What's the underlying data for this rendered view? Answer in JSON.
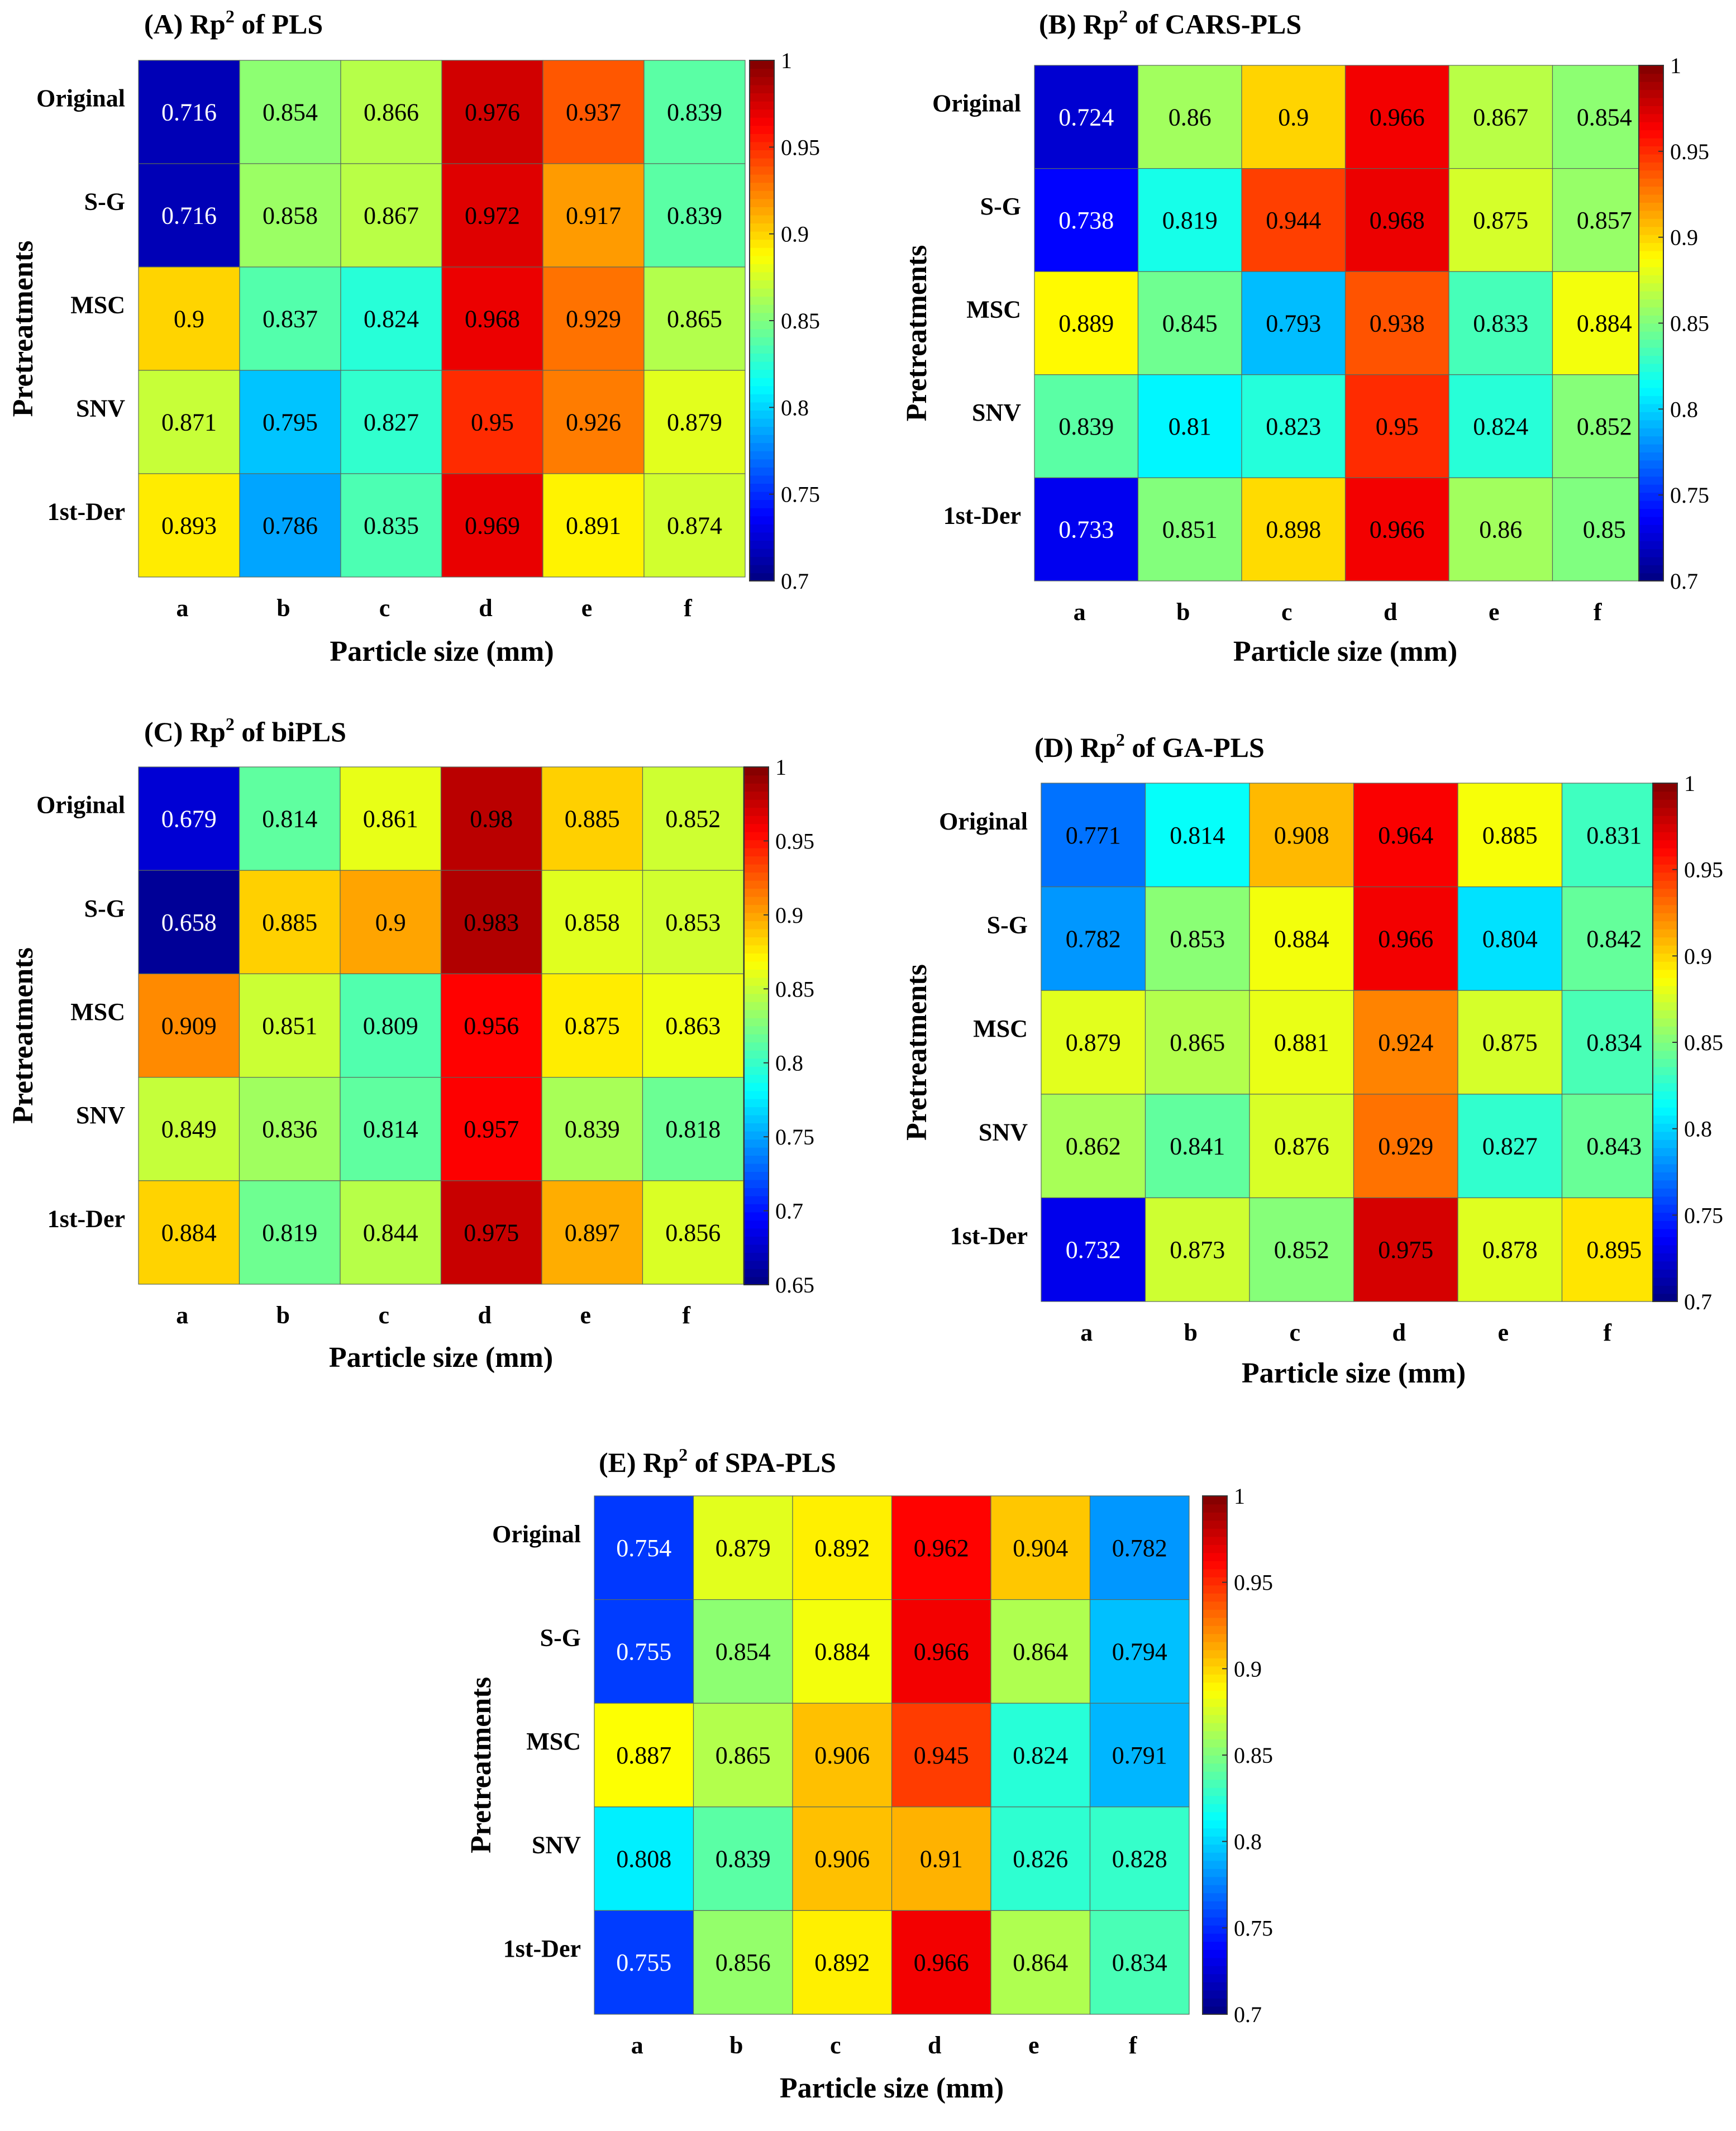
{
  "panels": [
    {
      "type": "heatmap",
      "title": "(A) Rp² of PLS",
      "title_main": "(A) Rp",
      "title_sup": "2",
      "title_rest": " of PLS",
      "xlabel": "Particle size (mm)",
      "ylabel": "Pretreatments",
      "x_categories": [
        "a",
        "b",
        "c",
        "d",
        "e",
        "f"
      ],
      "y_categories": [
        "Original",
        "S-G",
        "MSC",
        "SNV",
        "1st-Der"
      ],
      "values": [
        [
          0.716,
          0.854,
          0.866,
          0.976,
          0.937,
          0.839
        ],
        [
          0.716,
          0.858,
          0.867,
          0.972,
          0.917,
          0.839
        ],
        [
          0.9,
          0.837,
          0.824,
          0.968,
          0.929,
          0.865
        ],
        [
          0.871,
          0.795,
          0.827,
          0.95,
          0.926,
          0.879
        ],
        [
          0.893,
          0.786,
          0.835,
          0.969,
          0.891,
          0.874
        ]
      ],
      "cmin": 0.7,
      "cmax": 1,
      "colorbar_ticks": [
        "0.7",
        "0.75",
        "0.8",
        "0.85",
        "0.9",
        "0.95",
        "1"
      ]
    },
    {
      "type": "heatmap",
      "title": "(B) Rp² of CARS-PLS",
      "title_main": "(B) Rp",
      "title_sup": "2",
      "title_rest": " of CARS-PLS",
      "xlabel": "Particle size (mm)",
      "ylabel": "Pretreatments",
      "x_categories": [
        "a",
        "b",
        "c",
        "d",
        "e",
        "f"
      ],
      "y_categories": [
        "Original",
        "S-G",
        "MSC",
        "SNV",
        "1st-Der"
      ],
      "values": [
        [
          0.724,
          0.86,
          0.9,
          0.966,
          0.867,
          0.854
        ],
        [
          0.738,
          0.819,
          0.944,
          0.968,
          0.875,
          0.857
        ],
        [
          0.889,
          0.845,
          0.793,
          0.938,
          0.833,
          0.884
        ],
        [
          0.839,
          0.81,
          0.823,
          0.95,
          0.824,
          0.852
        ],
        [
          0.733,
          0.851,
          0.898,
          0.966,
          0.86,
          0.85
        ]
      ],
      "cmin": 0.7,
      "cmax": 1,
      "colorbar_ticks": [
        "0.7",
        "0.75",
        "0.8",
        "0.85",
        "0.9",
        "0.95",
        "1"
      ]
    },
    {
      "type": "heatmap",
      "title": "(C) Rp² of biPLS",
      "title_main": "(C) Rp",
      "title_sup": "2",
      "title_rest": " of biPLS",
      "xlabel": "Particle size (mm)",
      "ylabel": "Pretreatments",
      "x_categories": [
        "a",
        "b",
        "c",
        "d",
        "e",
        "f"
      ],
      "y_categories": [
        "Original",
        "S-G",
        "MSC",
        "SNV",
        "1st-Der"
      ],
      "values": [
        [
          0.679,
          0.814,
          0.861,
          0.98,
          0.885,
          0.852
        ],
        [
          0.658,
          0.885,
          0.9,
          0.983,
          0.858,
          0.853
        ],
        [
          0.909,
          0.851,
          0.809,
          0.956,
          0.875,
          0.863
        ],
        [
          0.849,
          0.836,
          0.814,
          0.957,
          0.839,
          0.818
        ],
        [
          0.884,
          0.819,
          0.844,
          0.975,
          0.897,
          0.856
        ]
      ],
      "cmin": 0.65,
      "cmax": 1,
      "colorbar_ticks": [
        "0.65",
        "0.7",
        "0.75",
        "0.8",
        "0.85",
        "0.9",
        "0.95",
        "1"
      ]
    },
    {
      "type": "heatmap",
      "title": "(D) Rp² of GA-PLS",
      "title_main": "(D) Rp",
      "title_sup": "2",
      "title_rest": " of GA-PLS",
      "xlabel": "Particle size (mm)",
      "ylabel": "Pretreatments",
      "x_categories": [
        "a",
        "b",
        "c",
        "d",
        "e",
        "f"
      ],
      "y_categories": [
        "Original",
        "S-G",
        "MSC",
        "SNV",
        "1st-Der"
      ],
      "values": [
        [
          0.771,
          0.814,
          0.908,
          0.964,
          0.885,
          0.831
        ],
        [
          0.782,
          0.853,
          0.884,
          0.966,
          0.804,
          0.842
        ],
        [
          0.879,
          0.865,
          0.881,
          0.924,
          0.875,
          0.834
        ],
        [
          0.862,
          0.841,
          0.876,
          0.929,
          0.827,
          0.843
        ],
        [
          0.732,
          0.873,
          0.852,
          0.975,
          0.878,
          0.895
        ]
      ],
      "cmin": 0.7,
      "cmax": 1,
      "colorbar_ticks": [
        "0.7",
        "0.75",
        "0.8",
        "0.85",
        "0.9",
        "0.95",
        "1"
      ]
    },
    {
      "type": "heatmap",
      "title": "(E) Rp² of SPA-PLS",
      "title_main": "(E) Rp",
      "title_sup": "2",
      "title_rest": " of SPA-PLS",
      "xlabel": "Particle size (mm)",
      "ylabel": "Pretreatments",
      "x_categories": [
        "a",
        "b",
        "c",
        "d",
        "e",
        "f"
      ],
      "y_categories": [
        "Original",
        "S-G",
        "MSC",
        "SNV",
        "1st-Der"
      ],
      "values": [
        [
          0.754,
          0.879,
          0.892,
          0.962,
          0.904,
          0.782
        ],
        [
          0.755,
          0.854,
          0.884,
          0.966,
          0.864,
          0.794
        ],
        [
          0.887,
          0.865,
          0.906,
          0.945,
          0.824,
          0.791
        ],
        [
          0.808,
          0.839,
          0.906,
          0.91,
          0.826,
          0.828
        ],
        [
          0.755,
          0.856,
          0.892,
          0.966,
          0.864,
          0.834
        ]
      ],
      "cmin": 0.7,
      "cmax": 1,
      "colorbar_ticks": [
        "0.7",
        "0.75",
        "0.8",
        "0.85",
        "0.9",
        "0.95",
        "1"
      ]
    }
  ],
  "chart_data": [
    {
      "type": "heatmap",
      "title": "(A) Rp² of PLS",
      "xlabel": "Particle size (mm)",
      "ylabel": "Pretreatments",
      "x": [
        "a",
        "b",
        "c",
        "d",
        "e",
        "f"
      ],
      "y": [
        "Original",
        "S-G",
        "MSC",
        "SNV",
        "1st-Der"
      ],
      "z": [
        [
          0.716,
          0.854,
          0.866,
          0.976,
          0.937,
          0.839
        ],
        [
          0.716,
          0.858,
          0.867,
          0.972,
          0.917,
          0.839
        ],
        [
          0.9,
          0.837,
          0.824,
          0.968,
          0.929,
          0.865
        ],
        [
          0.871,
          0.795,
          0.827,
          0.95,
          0.926,
          0.879
        ],
        [
          0.893,
          0.786,
          0.835,
          0.969,
          0.891,
          0.874
        ]
      ],
      "colorbar_range": [
        0.7,
        1
      ]
    },
    {
      "type": "heatmap",
      "title": "(B) Rp² of CARS-PLS",
      "xlabel": "Particle size (mm)",
      "ylabel": "Pretreatments",
      "x": [
        "a",
        "b",
        "c",
        "d",
        "e",
        "f"
      ],
      "y": [
        "Original",
        "S-G",
        "MSC",
        "SNV",
        "1st-Der"
      ],
      "z": [
        [
          0.724,
          0.86,
          0.9,
          0.966,
          0.867,
          0.854
        ],
        [
          0.738,
          0.819,
          0.944,
          0.968,
          0.875,
          0.857
        ],
        [
          0.889,
          0.845,
          0.793,
          0.938,
          0.833,
          0.884
        ],
        [
          0.839,
          0.81,
          0.823,
          0.95,
          0.824,
          0.852
        ],
        [
          0.733,
          0.851,
          0.898,
          0.966,
          0.86,
          0.85
        ]
      ],
      "colorbar_range": [
        0.7,
        1
      ]
    },
    {
      "type": "heatmap",
      "title": "(C) Rp² of biPLS",
      "xlabel": "Particle size (mm)",
      "ylabel": "Pretreatments",
      "x": [
        "a",
        "b",
        "c",
        "d",
        "e",
        "f"
      ],
      "y": [
        "Original",
        "S-G",
        "MSC",
        "SNV",
        "1st-Der"
      ],
      "z": [
        [
          0.679,
          0.814,
          0.861,
          0.98,
          0.885,
          0.852
        ],
        [
          0.658,
          0.885,
          0.9,
          0.983,
          0.858,
          0.853
        ],
        [
          0.909,
          0.851,
          0.809,
          0.956,
          0.875,
          0.863
        ],
        [
          0.849,
          0.836,
          0.814,
          0.957,
          0.839,
          0.818
        ],
        [
          0.884,
          0.819,
          0.844,
          0.975,
          0.897,
          0.856
        ]
      ],
      "colorbar_range": [
        0.65,
        1
      ]
    },
    {
      "type": "heatmap",
      "title": "(D) Rp² of GA-PLS",
      "xlabel": "Particle size (mm)",
      "ylabel": "Pretreatments",
      "x": [
        "a",
        "b",
        "c",
        "d",
        "e",
        "f"
      ],
      "y": [
        "Original",
        "S-G",
        "MSC",
        "SNV",
        "1st-Der"
      ],
      "z": [
        [
          0.771,
          0.814,
          0.908,
          0.964,
          0.885,
          0.831
        ],
        [
          0.782,
          0.853,
          0.884,
          0.966,
          0.804,
          0.842
        ],
        [
          0.879,
          0.865,
          0.881,
          0.924,
          0.875,
          0.834
        ],
        [
          0.862,
          0.841,
          0.876,
          0.929,
          0.827,
          0.843
        ],
        [
          0.732,
          0.873,
          0.852,
          0.975,
          0.878,
          0.895
        ]
      ],
      "colorbar_range": [
        0.7,
        1
      ]
    },
    {
      "type": "heatmap",
      "title": "(E) Rp² of SPA-PLS",
      "xlabel": "Particle size (mm)",
      "ylabel": "Pretreatments",
      "x": [
        "a",
        "b",
        "c",
        "d",
        "e",
        "f"
      ],
      "y": [
        "Original",
        "S-G",
        "MSC",
        "SNV",
        "1st-Der"
      ],
      "z": [
        [
          0.754,
          0.879,
          0.892,
          0.962,
          0.904,
          0.782
        ],
        [
          0.755,
          0.854,
          0.884,
          0.966,
          0.864,
          0.794
        ],
        [
          0.887,
          0.865,
          0.906,
          0.945,
          0.824,
          0.791
        ],
        [
          0.808,
          0.839,
          0.906,
          0.91,
          0.826,
          0.828
        ],
        [
          0.755,
          0.856,
          0.892,
          0.966,
          0.864,
          0.834
        ]
      ],
      "colorbar_range": [
        0.7,
        1
      ]
    }
  ]
}
